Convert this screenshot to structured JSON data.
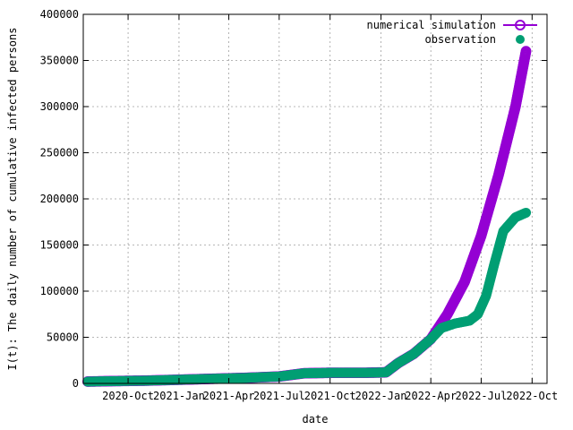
{
  "chart_data": {
    "type": "scatter",
    "xlabel": "date",
    "ylabel": "I(t): The daily number of cumulative infected persons",
    "ylim": [
      0,
      400000
    ],
    "yticks": [
      0,
      50000,
      100000,
      150000,
      200000,
      250000,
      300000,
      350000,
      400000
    ],
    "xlim": [
      "2020-07-12",
      "2022-10-28"
    ],
    "xticks": [
      {
        "label": "2020-Oct",
        "date": "2020-10-01"
      },
      {
        "label": "2021-Jan",
        "date": "2021-01-01"
      },
      {
        "label": "2021-Apr",
        "date": "2021-04-01"
      },
      {
        "label": "2021-Jul",
        "date": "2021-07-01"
      },
      {
        "label": "2021-Oct",
        "date": "2021-10-01"
      },
      {
        "label": "2022-Jan",
        "date": "2022-01-01"
      },
      {
        "label": "2022-Apr",
        "date": "2022-04-01"
      },
      {
        "label": "2022-Jul",
        "date": "2022-07-01"
      },
      {
        "label": "2022-Oct",
        "date": "2022-10-01"
      }
    ],
    "grid": true,
    "legend_position": "top-right",
    "series": [
      {
        "name": "numerical simulation",
        "color": "#9400d3",
        "marker": "open-circle",
        "points": [
          [
            "2020-07-20",
            2000
          ],
          [
            "2020-09-01",
            2500
          ],
          [
            "2020-11-01",
            3000
          ],
          [
            "2021-01-01",
            4000
          ],
          [
            "2021-03-01",
            5000
          ],
          [
            "2021-05-01",
            6000
          ],
          [
            "2021-07-01",
            7500
          ],
          [
            "2021-08-15",
            11000
          ],
          [
            "2021-10-01",
            11500
          ],
          [
            "2021-12-01",
            11500
          ],
          [
            "2022-01-10",
            12000
          ],
          [
            "2022-02-01",
            22000
          ],
          [
            "2022-03-01",
            32000
          ],
          [
            "2022-04-01",
            48000
          ],
          [
            "2022-05-01",
            75000
          ],
          [
            "2022-06-01",
            110000
          ],
          [
            "2022-07-01",
            160000
          ],
          [
            "2022-08-01",
            225000
          ],
          [
            "2022-09-01",
            300000
          ],
          [
            "2022-09-20",
            360000
          ]
        ]
      },
      {
        "name": "observation",
        "color": "#009e73",
        "marker": "filled-circle",
        "points": [
          [
            "2020-07-20",
            2000
          ],
          [
            "2020-09-01",
            2500
          ],
          [
            "2020-11-01",
            3000
          ],
          [
            "2021-01-01",
            4000
          ],
          [
            "2021-03-01",
            5000
          ],
          [
            "2021-05-01",
            6000
          ],
          [
            "2021-07-01",
            7500
          ],
          [
            "2021-08-15",
            11000
          ],
          [
            "2021-10-01",
            11500
          ],
          [
            "2021-12-01",
            11500
          ],
          [
            "2022-01-10",
            12000
          ],
          [
            "2022-02-01",
            22000
          ],
          [
            "2022-03-01",
            32000
          ],
          [
            "2022-04-01",
            48000
          ],
          [
            "2022-04-20",
            60000
          ],
          [
            "2022-05-15",
            65000
          ],
          [
            "2022-06-10",
            68000
          ],
          [
            "2022-06-25",
            75000
          ],
          [
            "2022-07-10",
            95000
          ],
          [
            "2022-07-25",
            130000
          ],
          [
            "2022-08-10",
            165000
          ],
          [
            "2022-09-01",
            180000
          ],
          [
            "2022-09-20",
            185000
          ]
        ]
      }
    ]
  }
}
